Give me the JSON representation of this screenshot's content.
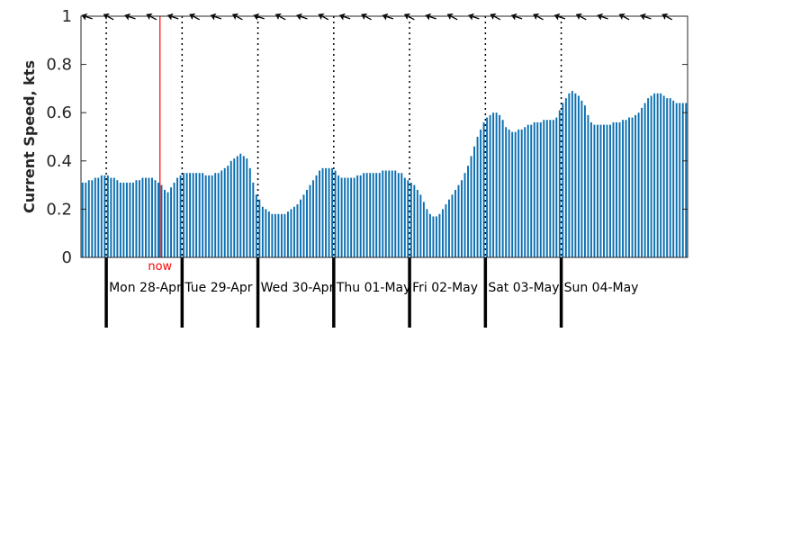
{
  "chart_data": {
    "type": "bar",
    "ylabel": "Current Speed, kts",
    "ylim": [
      0,
      1
    ],
    "yticks": [
      "0",
      "0.2",
      "0.4",
      "0.6",
      "0.8",
      "1"
    ],
    "grid": false,
    "bar_color": "#0b6fb1",
    "now_color": "#ff0000",
    "now_label": "now",
    "now_hour": 25,
    "hours_per_day": 24,
    "first_day_boundary_hour": 8,
    "day_labels": [
      "Mon 28-Apr",
      "Tue 29-Apr",
      "Wed 30-Apr",
      "Thu 01-May",
      "Fri 02-May",
      "Sat 03-May",
      "Sun 04-May"
    ],
    "values": [
      0.31,
      0.31,
      0.32,
      0.32,
      0.33,
      0.33,
      0.34,
      0.34,
      0.34,
      0.33,
      0.33,
      0.32,
      0.31,
      0.31,
      0.31,
      0.31,
      0.31,
      0.32,
      0.32,
      0.33,
      0.33,
      0.33,
      0.33,
      0.32,
      0.31,
      0.3,
      0.28,
      0.27,
      0.29,
      0.31,
      0.33,
      0.34,
      0.35,
      0.35,
      0.35,
      0.35,
      0.35,
      0.35,
      0.35,
      0.34,
      0.34,
      0.34,
      0.35,
      0.35,
      0.36,
      0.37,
      0.38,
      0.4,
      0.41,
      0.42,
      0.43,
      0.42,
      0.41,
      0.37,
      0.31,
      0.26,
      0.24,
      0.21,
      0.2,
      0.19,
      0.18,
      0.18,
      0.18,
      0.18,
      0.18,
      0.19,
      0.2,
      0.21,
      0.22,
      0.24,
      0.26,
      0.28,
      0.3,
      0.32,
      0.34,
      0.36,
      0.37,
      0.37,
      0.37,
      0.37,
      0.36,
      0.34,
      0.33,
      0.33,
      0.33,
      0.33,
      0.33,
      0.34,
      0.34,
      0.35,
      0.35,
      0.35,
      0.35,
      0.35,
      0.35,
      0.36,
      0.36,
      0.36,
      0.36,
      0.36,
      0.35,
      0.35,
      0.33,
      0.32,
      0.31,
      0.3,
      0.28,
      0.26,
      0.23,
      0.2,
      0.18,
      0.17,
      0.17,
      0.18,
      0.2,
      0.22,
      0.24,
      0.26,
      0.28,
      0.3,
      0.32,
      0.35,
      0.38,
      0.42,
      0.46,
      0.5,
      0.53,
      0.56,
      0.58,
      0.59,
      0.6,
      0.6,
      0.59,
      0.57,
      0.54,
      0.53,
      0.52,
      0.52,
      0.53,
      0.53,
      0.54,
      0.55,
      0.55,
      0.56,
      0.56,
      0.56,
      0.57,
      0.57,
      0.57,
      0.57,
      0.58,
      0.61,
      0.64,
      0.66,
      0.68,
      0.69,
      0.68,
      0.67,
      0.65,
      0.63,
      0.59,
      0.56,
      0.55,
      0.55,
      0.55,
      0.55,
      0.55,
      0.55,
      0.56,
      0.56,
      0.56,
      0.57,
      0.57,
      0.58,
      0.58,
      0.59,
      0.6,
      0.62,
      0.64,
      0.66,
      0.67,
      0.68,
      0.68,
      0.68,
      0.67,
      0.66,
      0.66,
      0.65,
      0.64,
      0.64,
      0.64,
      0.64
    ]
  }
}
